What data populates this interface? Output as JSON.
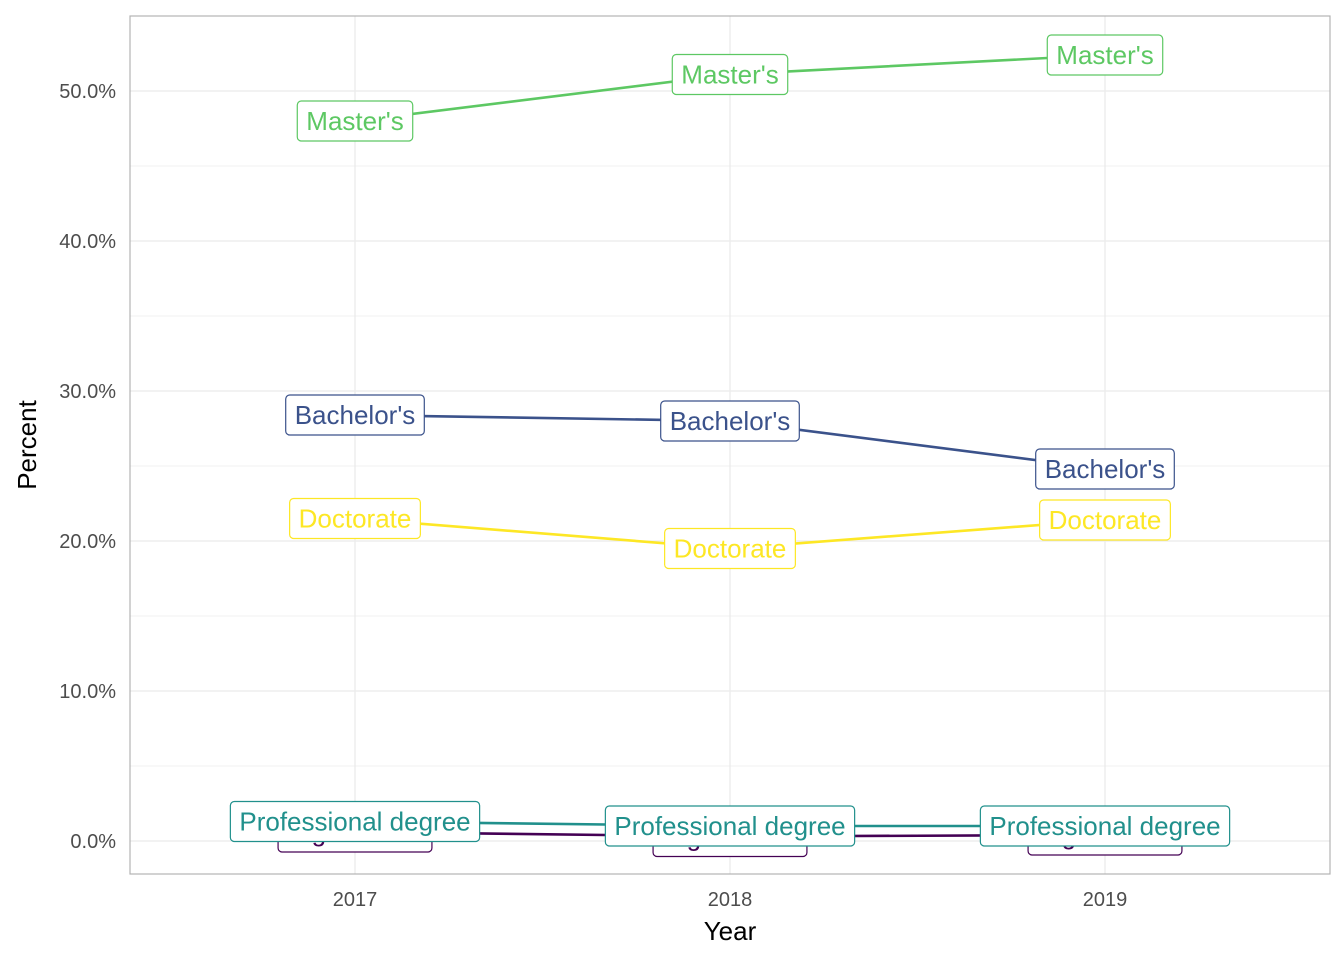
{
  "chart_data": {
    "type": "line",
    "title": "",
    "xlabel": "Year",
    "ylabel": "Percent",
    "x": [
      "2017",
      "2018",
      "2019"
    ],
    "ylim": [
      -2.2,
      55
    ],
    "yticks": [
      0,
      10,
      20,
      30,
      40,
      50
    ],
    "ytick_labels": [
      "0.0%",
      "10.0%",
      "20.0%",
      "30.0%",
      "40.0%",
      "50.0%"
    ],
    "grid": true,
    "legend": "none",
    "series": [
      {
        "name": "High school",
        "color": "#440154",
        "values": [
          0.6,
          0.3,
          0.4
        ]
      },
      {
        "name": "Bachelor's",
        "color": "#3B528B",
        "values": [
          28.4,
          28.0,
          24.8
        ]
      },
      {
        "name": "Professional degree",
        "color": "#21908C",
        "values": [
          1.3,
          1.0,
          1.0
        ]
      },
      {
        "name": "Master's",
        "color": "#5DC863",
        "values": [
          48.0,
          51.1,
          52.4
        ]
      },
      {
        "name": "Doctorate",
        "color": "#FDE725",
        "values": [
          21.5,
          19.5,
          21.4
        ]
      }
    ]
  }
}
